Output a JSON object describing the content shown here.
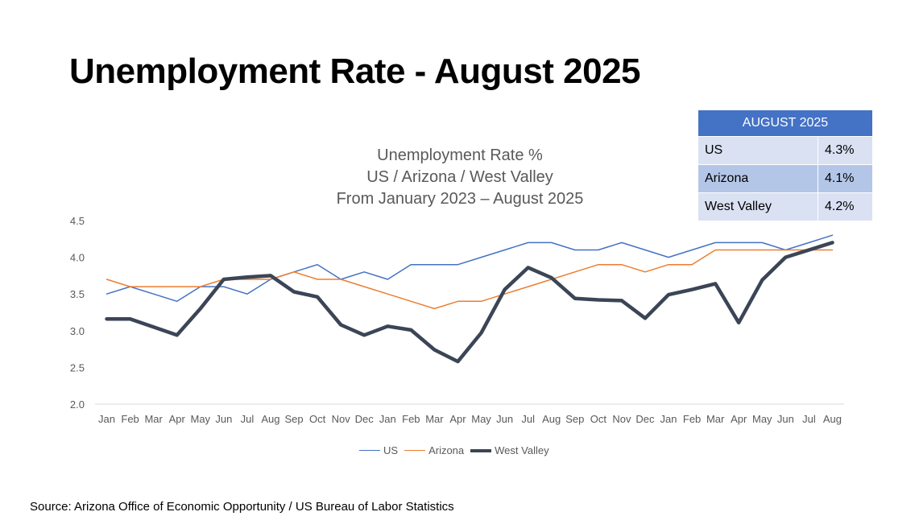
{
  "slide": {
    "title": "Unemployment Rate - August 2025",
    "source": "Source: Arizona Office of Economic Opportunity / US Bureau of Labor Statistics"
  },
  "summary_table": {
    "header": "AUGUST 2025",
    "rows": [
      {
        "label": "US",
        "value": "4.3%"
      },
      {
        "label": "Arizona",
        "value": "4.1%"
      },
      {
        "label": "West Valley",
        "value": "4.2%"
      }
    ]
  },
  "chart_data": {
    "type": "line",
    "title_lines": [
      "Unemployment Rate %",
      "US / Arizona / West Valley",
      "From January 2023 – August 2025"
    ],
    "categories": [
      "Jan",
      "Feb",
      "Mar",
      "Apr",
      "May",
      "Jun",
      "Jul",
      "Aug",
      "Sep",
      "Oct",
      "Nov",
      "Dec",
      "Jan",
      "Feb",
      "Mar",
      "Apr",
      "May",
      "Jun",
      "Jul",
      "Aug",
      "Sep",
      "Oct",
      "Nov",
      "Dec",
      "Jan",
      "Feb",
      "Mar",
      "Apr",
      "May",
      "Jun",
      "Jul",
      "Aug"
    ],
    "y_ticks": [
      "2.0",
      "2.5",
      "3.0",
      "3.5",
      "4.0",
      "4.5"
    ],
    "ylim": [
      2.0,
      4.5
    ],
    "grid": false,
    "legend_position": "bottom",
    "series": [
      {
        "name": "US",
        "color": "#4472c4",
        "width": 1.5,
        "values": [
          3.5,
          3.6,
          3.5,
          3.4,
          3.6,
          3.6,
          3.5,
          3.7,
          3.8,
          3.9,
          3.7,
          3.8,
          3.7,
          3.9,
          3.9,
          3.9,
          4.0,
          4.1,
          4.2,
          4.2,
          4.1,
          4.1,
          4.2,
          4.1,
          4.0,
          4.1,
          4.2,
          4.2,
          4.2,
          4.1,
          4.2,
          4.3
        ]
      },
      {
        "name": "Arizona",
        "color": "#ed7d31",
        "width": 1.5,
        "values": [
          3.7,
          3.6,
          3.6,
          3.6,
          3.6,
          3.7,
          3.7,
          3.7,
          3.8,
          3.7,
          3.7,
          3.6,
          3.5,
          3.4,
          3.3,
          3.4,
          3.4,
          3.5,
          3.6,
          3.7,
          3.8,
          3.9,
          3.9,
          3.8,
          3.9,
          3.9,
          4.1,
          4.1,
          4.1,
          4.1,
          4.1,
          4.1
        ]
      },
      {
        "name": "West Valley",
        "color": "#3b4556",
        "width": 4.5,
        "values": [
          3.16,
          3.16,
          3.05,
          2.94,
          3.3,
          3.7,
          3.73,
          3.75,
          3.53,
          3.46,
          3.08,
          2.94,
          3.06,
          3.01,
          2.74,
          2.58,
          2.97,
          3.56,
          3.86,
          3.72,
          3.44,
          3.42,
          3.41,
          3.17,
          3.49,
          3.56,
          3.64,
          3.11,
          3.69,
          4.0,
          4.1,
          4.2
        ]
      }
    ]
  }
}
